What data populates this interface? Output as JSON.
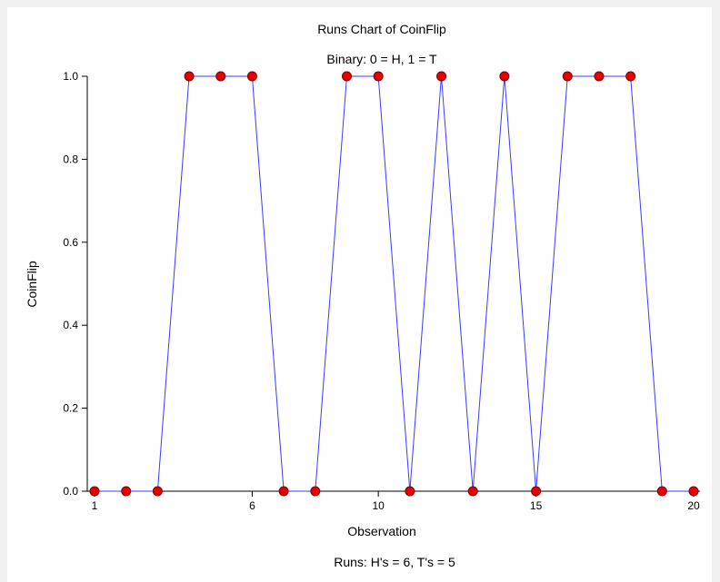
{
  "chart_data": {
    "type": "line",
    "title": "Runs Chart of CoinFlip",
    "subtitle": "Binary: 0 = H, 1 = T",
    "xlabel": "Observation",
    "ylabel": "CoinFlip",
    "footer": "Runs: H's = 6, T's = 5",
    "x": [
      1,
      2,
      3,
      4,
      5,
      6,
      7,
      8,
      9,
      10,
      11,
      12,
      13,
      14,
      15,
      16,
      17,
      18,
      19,
      20
    ],
    "series": [
      {
        "values": [
          0,
          0,
          0,
          1,
          1,
          1,
          0,
          0,
          1,
          1,
          0,
          1,
          0,
          1,
          0,
          1,
          1,
          1,
          0,
          0
        ]
      }
    ],
    "xlim": [
      1,
      20
    ],
    "ylim": [
      0,
      1
    ],
    "x_ticks": [
      1,
      6,
      10,
      15,
      20
    ],
    "y_ticks": [
      "0.0",
      "0.2",
      "0.4",
      "0.6",
      "0.8",
      "1.0"
    ],
    "grid": false,
    "colors": {
      "line": "#3b3bff",
      "marker": "#e60000",
      "marker_edge": "#7a0000"
    }
  }
}
